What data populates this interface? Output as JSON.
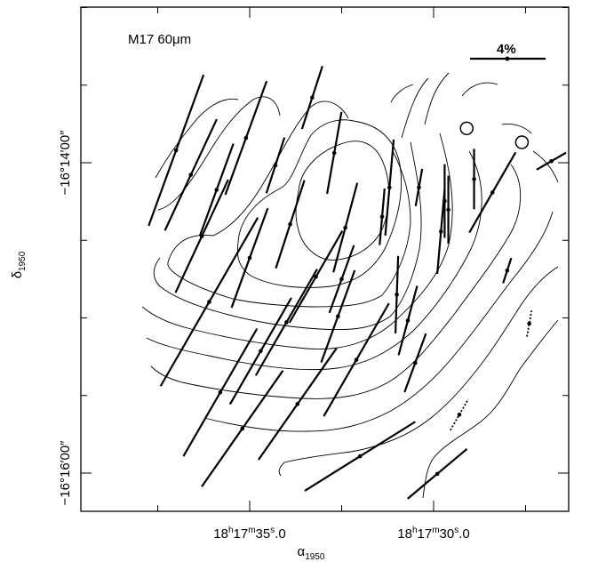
{
  "chart_data": {
    "type": "scatter",
    "title": "M17   60μm",
    "x_axis": {
      "label": "α1950",
      "label_main": "α",
      "label_sub": "1950",
      "ticks": [
        {
          "h": "18",
          "m": "17",
          "s": "35",
          "frac": "0",
          "ra_sec": 35.0
        },
        {
          "h": "18",
          "m": "17",
          "s": "30",
          "frac": "0",
          "ra_sec": 30.0
        }
      ]
    },
    "y_axis": {
      "label": "δ1950",
      "label_main": "δ",
      "label_sub": "1950",
      "ticks": [
        {
          "text": "−16°14′00″",
          "dec_arcsec": 0
        },
        {
          "text": "−16°16′00″",
          "dec_arcsec": -120
        }
      ]
    },
    "xlim_ra_sec": [
      38.2,
      26.2
    ],
    "ylim_dec_arcsec": [
      60,
      -135
    ],
    "scale_bar": {
      "label": "4%",
      "percent": 4
    },
    "vectors": [
      {
        "ra": 36.6,
        "dec": -4.7,
        "p": 6.5,
        "pa": 155
      },
      {
        "ra": 35.9,
        "dec": -10.5,
        "p": 5.2,
        "pa": 160
      },
      {
        "ra": 35.1,
        "dec": 9.6,
        "p": 6.4,
        "pa": 160
      },
      {
        "ra": 34.3,
        "dec": -1.0,
        "p": 3.1,
        "pa": 162
      },
      {
        "ra": 33.3,
        "dec": 25.2,
        "p": 3.5,
        "pa": 162
      },
      {
        "ra": 32.7,
        "dec": 3.8,
        "p": 4.4,
        "pa": 170
      },
      {
        "ra": 31.2,
        "dec": -9.6,
        "p": 5.1,
        "pa": 175
      },
      {
        "ra": 29.7,
        "dec": -14.8,
        "p": 3.9,
        "pa": 180
      },
      {
        "ra": 28.0,
        "dec": -41.7,
        "p": 1.4,
        "pa": 162
      },
      {
        "ra": 32.5,
        "dec": -45.0,
        "p": 3.8,
        "pa": 160
      },
      {
        "ra": 31.4,
        "dec": -20.9,
        "p": 3.0,
        "pa": 175
      },
      {
        "ra": 31.0,
        "dec": -51.0,
        "p": 4.1,
        "pa": 178
      },
      {
        "ra": 30.5,
        "dec": -77.4,
        "p": 3.3,
        "pa": 160
      },
      {
        "ra": 29.8,
        "dec": -26.6,
        "p": 4.5,
        "pa": 175
      },
      {
        "ra": 28.4,
        "dec": -11.5,
        "p": 4.9,
        "pa": 150
      },
      {
        "ra": 26.8,
        "dec": 0.6,
        "p": 1.8,
        "pa": 120
      },
      {
        "ra": 33.9,
        "dec": -23.8,
        "p": 4.9,
        "pa": 162
      },
      {
        "ra": 33.2,
        "dec": -44.1,
        "p": 5.6,
        "pa": 150
      },
      {
        "ra": 35.0,
        "dec": -36.8,
        "p": 5.6,
        "pa": 160
      },
      {
        "ra": 37.0,
        "dec": 4.8,
        "p": 8.5,
        "pa": 160
      },
      {
        "ra": 32.6,
        "dec": -59.4,
        "p": 5.2,
        "pa": 160
      },
      {
        "ra": 30.7,
        "dec": -61.0,
        "p": 3.8,
        "pa": 165
      },
      {
        "ra": 29.6,
        "dec": -18.2,
        "p": 3.6,
        "pa": 180
      },
      {
        "ra": 28.9,
        "dec": -6.3,
        "p": 3.2,
        "pa": 180
      },
      {
        "ra": 36.3,
        "dec": -28.4,
        "p": 6.6,
        "pa": 155
      },
      {
        "ra": 36.1,
        "dec": -53.8,
        "p": 10.3,
        "pa": 150
      },
      {
        "ra": 34.7,
        "dec": -72.8,
        "p": 6.5,
        "pa": 150
      },
      {
        "ra": 33.7,
        "dec": -93.3,
        "p": 7.2,
        "pa": 145
      },
      {
        "ra": 32.1,
        "dec": -76.2,
        "p": 6.9,
        "pa": 150
      },
      {
        "ra": 34.0,
        "dec": -61.7,
        "p": 6.5,
        "pa": 150
      },
      {
        "ra": 32.0,
        "dec": -113.5,
        "p": 6.9,
        "pa": 122
      },
      {
        "ra": 29.9,
        "dec": -120.3,
        "p": 4.1,
        "pa": 130
      },
      {
        "ra": 35.2,
        "dec": -102.8,
        "p": 7.5,
        "pa": 145
      },
      {
        "ra": 35.8,
        "dec": -88.8,
        "p": 7.8,
        "pa": 150
      },
      {
        "ra": 32.4,
        "dec": -25.1,
        "p": 4.9,
        "pa": 165
      },
      {
        "ra": 30.4,
        "dec": -9.6,
        "p": 2.0,
        "pa": 170
      }
    ],
    "dotted_vectors": [
      {
        "ra": 29.3,
        "dec": -97.4,
        "p": 1.9,
        "pa": 150
      },
      {
        "ra": 27.4,
        "dec": -62.2,
        "p": 1.4,
        "pa": 170
      }
    ],
    "circles": [
      {
        "ra": 29.1,
        "dec": 13.3
      },
      {
        "ra": 27.6,
        "dec": 7.9
      }
    ]
  }
}
